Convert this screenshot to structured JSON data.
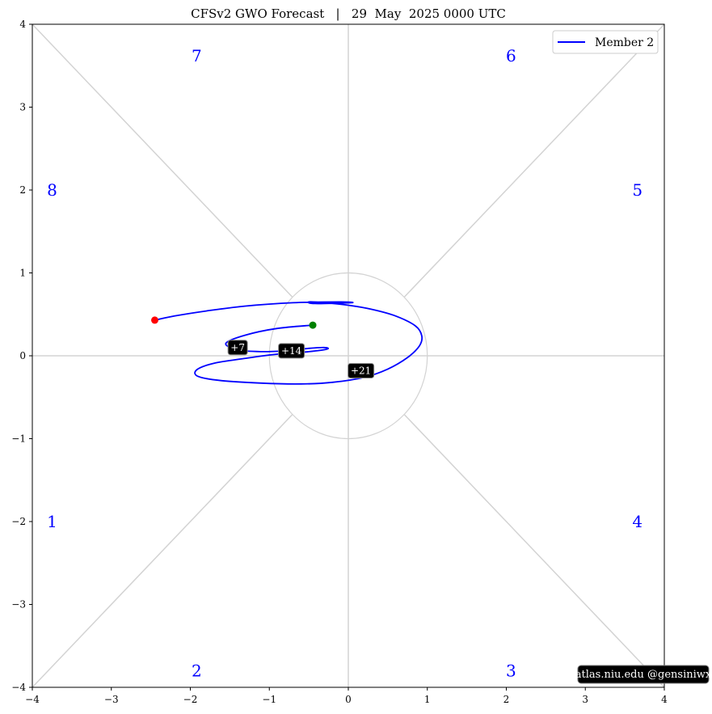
{
  "chart_data": {
    "type": "line",
    "title": "CFSv2 GWO Forecast   |   29  May  2025 0000 UTC",
    "xlim": [
      -4,
      4
    ],
    "ylim": [
      -4,
      4
    ],
    "x_ticks": [
      -4,
      -3,
      -2,
      -1,
      0,
      1,
      2,
      3,
      4
    ],
    "y_ticks": [
      -4,
      -3,
      -2,
      -1,
      0,
      1,
      2,
      3,
      4
    ],
    "x_tick_labels": [
      "−4",
      "−3",
      "−2",
      "−1",
      "0",
      "1",
      "2",
      "3",
      "4"
    ],
    "y_tick_labels": [
      "−4",
      "−3",
      "−2",
      "−1",
      "0",
      "1",
      "2",
      "3",
      "4"
    ],
    "grid": false,
    "phase_labels": [
      {
        "label": "1",
        "x": -3.75,
        "y": -2.0
      },
      {
        "label": "2",
        "x": -1.92,
        "y": -3.8
      },
      {
        "label": "3",
        "x": 2.06,
        "y": -3.8
      },
      {
        "label": "4",
        "x": 3.66,
        "y": -2.0
      },
      {
        "label": "5",
        "x": 3.66,
        "y": 2.0
      },
      {
        "label": "6",
        "x": 2.06,
        "y": 3.62
      },
      {
        "label": "7",
        "x": -1.92,
        "y": 3.62
      },
      {
        "label": "8",
        "x": -3.75,
        "y": 2.0
      }
    ],
    "series": [
      {
        "name": "Member 2",
        "color": "#0000ff",
        "x": [
          -0.45,
          -0.9,
          -1.3,
          -1.55,
          -1.4,
          -1.1,
          -0.8,
          -0.5,
          -0.3,
          -0.27,
          -0.5,
          -0.9,
          -1.3,
          -1.7,
          -1.92,
          -1.9,
          -1.6,
          -1.1,
          -0.6,
          -0.2,
          0.2,
          0.5,
          0.75,
          0.9,
          0.93,
          0.85,
          0.6,
          0.3,
          0.0,
          -0.3,
          -0.5,
          -0.42,
          0.04,
          -0.1,
          -0.7,
          -1.3,
          -1.8,
          -2.2,
          -2.45
        ],
        "y": [
          0.37,
          0.33,
          0.25,
          0.15,
          0.07,
          0.05,
          0.06,
          0.09,
          0.1,
          0.08,
          0.05,
          0.02,
          -0.03,
          -0.09,
          -0.17,
          -0.25,
          -0.3,
          -0.33,
          -0.34,
          -0.32,
          -0.26,
          -0.16,
          -0.02,
          0.12,
          0.24,
          0.36,
          0.48,
          0.56,
          0.61,
          0.64,
          0.65,
          0.63,
          0.64,
          0.65,
          0.64,
          0.6,
          0.54,
          0.48,
          0.43
        ]
      }
    ],
    "start_point": {
      "x": -0.45,
      "y": 0.37,
      "color": "#008000"
    },
    "end_point": {
      "x": -2.45,
      "y": 0.43,
      "color": "#ff0000"
    },
    "day_markers": [
      {
        "label": "+7",
        "x": -1.4,
        "y": 0.1
      },
      {
        "label": "+14",
        "x": -0.72,
        "y": 0.06
      },
      {
        "label": "+21",
        "x": 0.16,
        "y": -0.18
      }
    ],
    "legend": {
      "placement": "top-right",
      "entries": [
        "Member 2"
      ]
    },
    "credit": "atlas.niu.edu  @gensiniwx"
  }
}
